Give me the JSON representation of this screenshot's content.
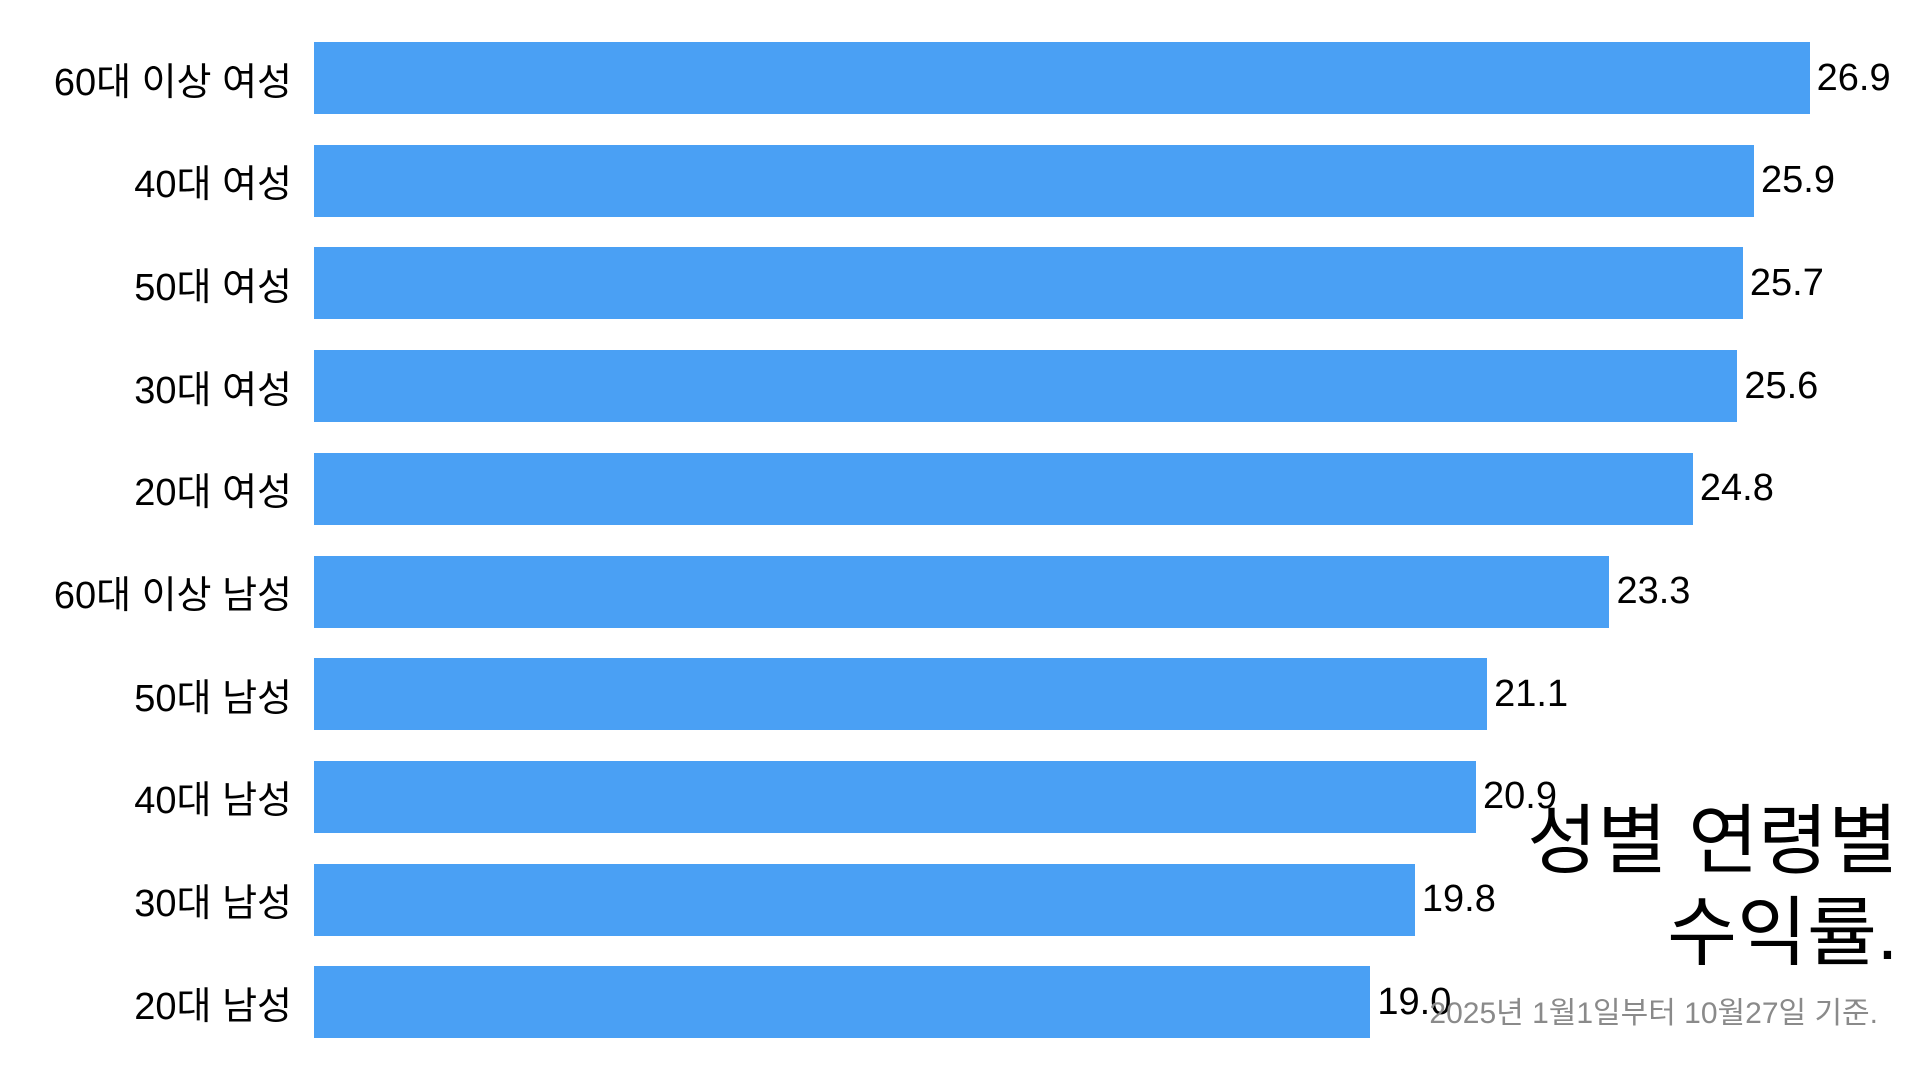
{
  "chart_data": {
    "type": "bar",
    "orientation": "horizontal",
    "sorted": "descending",
    "categories": [
      "60대 이상 여성",
      "40대 여성",
      "50대 여성",
      "30대 여성",
      "20대 여성",
      "60대 이상 남성",
      "50대 남성",
      "40대 남성",
      "30대 남성",
      "20대 남성"
    ],
    "values": [
      26.9,
      25.9,
      25.7,
      25.6,
      24.8,
      23.3,
      21.1,
      20.9,
      19.8,
      19.0
    ],
    "value_labels": [
      "26.9",
      "25.9",
      "25.7",
      "25.6",
      "24.8",
      "23.3",
      "21.1",
      "20.9",
      "19.8",
      "19.0"
    ],
    "title_lines": [
      "성별 연령별",
      "수익률."
    ],
    "subtitle": "2025년 1월1일부터 10월27일 기준.",
    "xlabel": "",
    "ylabel": "",
    "xlim": [
      0,
      28.9
    ],
    "grid": false,
    "legend": "none",
    "bar_color": "#4aa0f4",
    "label_color": "#000000",
    "subtitle_color": "#8a8a8a"
  }
}
